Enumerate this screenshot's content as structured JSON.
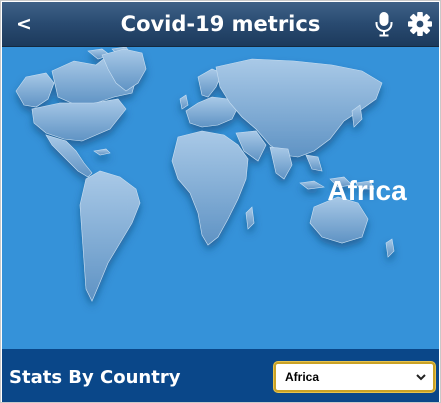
{
  "header": {
    "back_label": "<",
    "title": "Covid-19 metrics",
    "mic_icon": "microphone-icon",
    "settings_icon": "gear-icon"
  },
  "hero": {
    "region_name": "Africa",
    "background_color": "#3592d9",
    "map_icon": "world-map"
  },
  "footer": {
    "title": "Stats By Country",
    "background_color": "#0a4789",
    "region_select": {
      "selected": "Africa"
    }
  },
  "colors": {
    "header_top": "#3f6187",
    "header_bottom": "#1c3a5c",
    "select_border": "#c9a227"
  }
}
